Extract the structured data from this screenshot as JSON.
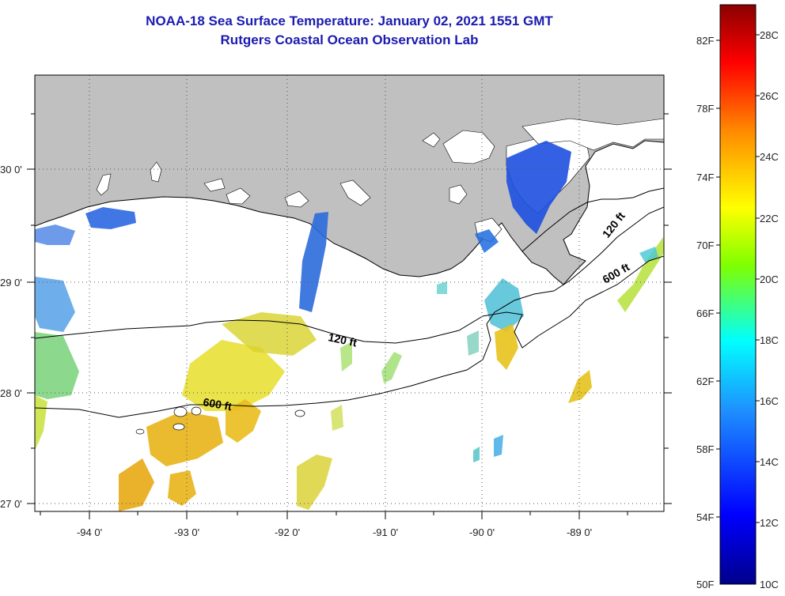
{
  "title_line1": "NOAA-18 Sea Surface Temperature:  January 02, 2021 1551 GMT",
  "title_line2": "Rutgers Coastal Ocean Observation Lab",
  "map": {
    "lon_range": [
      -94.6,
      -88.3
    ],
    "lat_range": [
      26.95,
      30.85
    ],
    "lon_ticks": [
      "-94 0'",
      "-93 0'",
      "-92 0'",
      "-91 0'",
      "-90 0'",
      "-89 0'"
    ],
    "lat_ticks": [
      "30 0'",
      "29 0'",
      "28 0'",
      "27 0'"
    ],
    "isobath_labels": [
      "120 ft",
      "120 ft",
      "600 ft",
      "600 ft"
    ],
    "land_color": "#c0c0c0"
  },
  "colorbar": {
    "fahrenheit_labels": [
      "82F",
      "78F",
      "74F",
      "70F",
      "66F",
      "62F",
      "58F",
      "54F",
      "50F"
    ],
    "celsius_labels": [
      "28C",
      "26C",
      "24C",
      "22C",
      "20C",
      "18C",
      "16C",
      "14C",
      "12C",
      "10C"
    ],
    "colors": [
      "#8b0000",
      "#ff0000",
      "#ff8c00",
      "#ffff00",
      "#7fff00",
      "#00ffff",
      "#1e90ff",
      "#0000ff",
      "#00008b"
    ]
  }
}
